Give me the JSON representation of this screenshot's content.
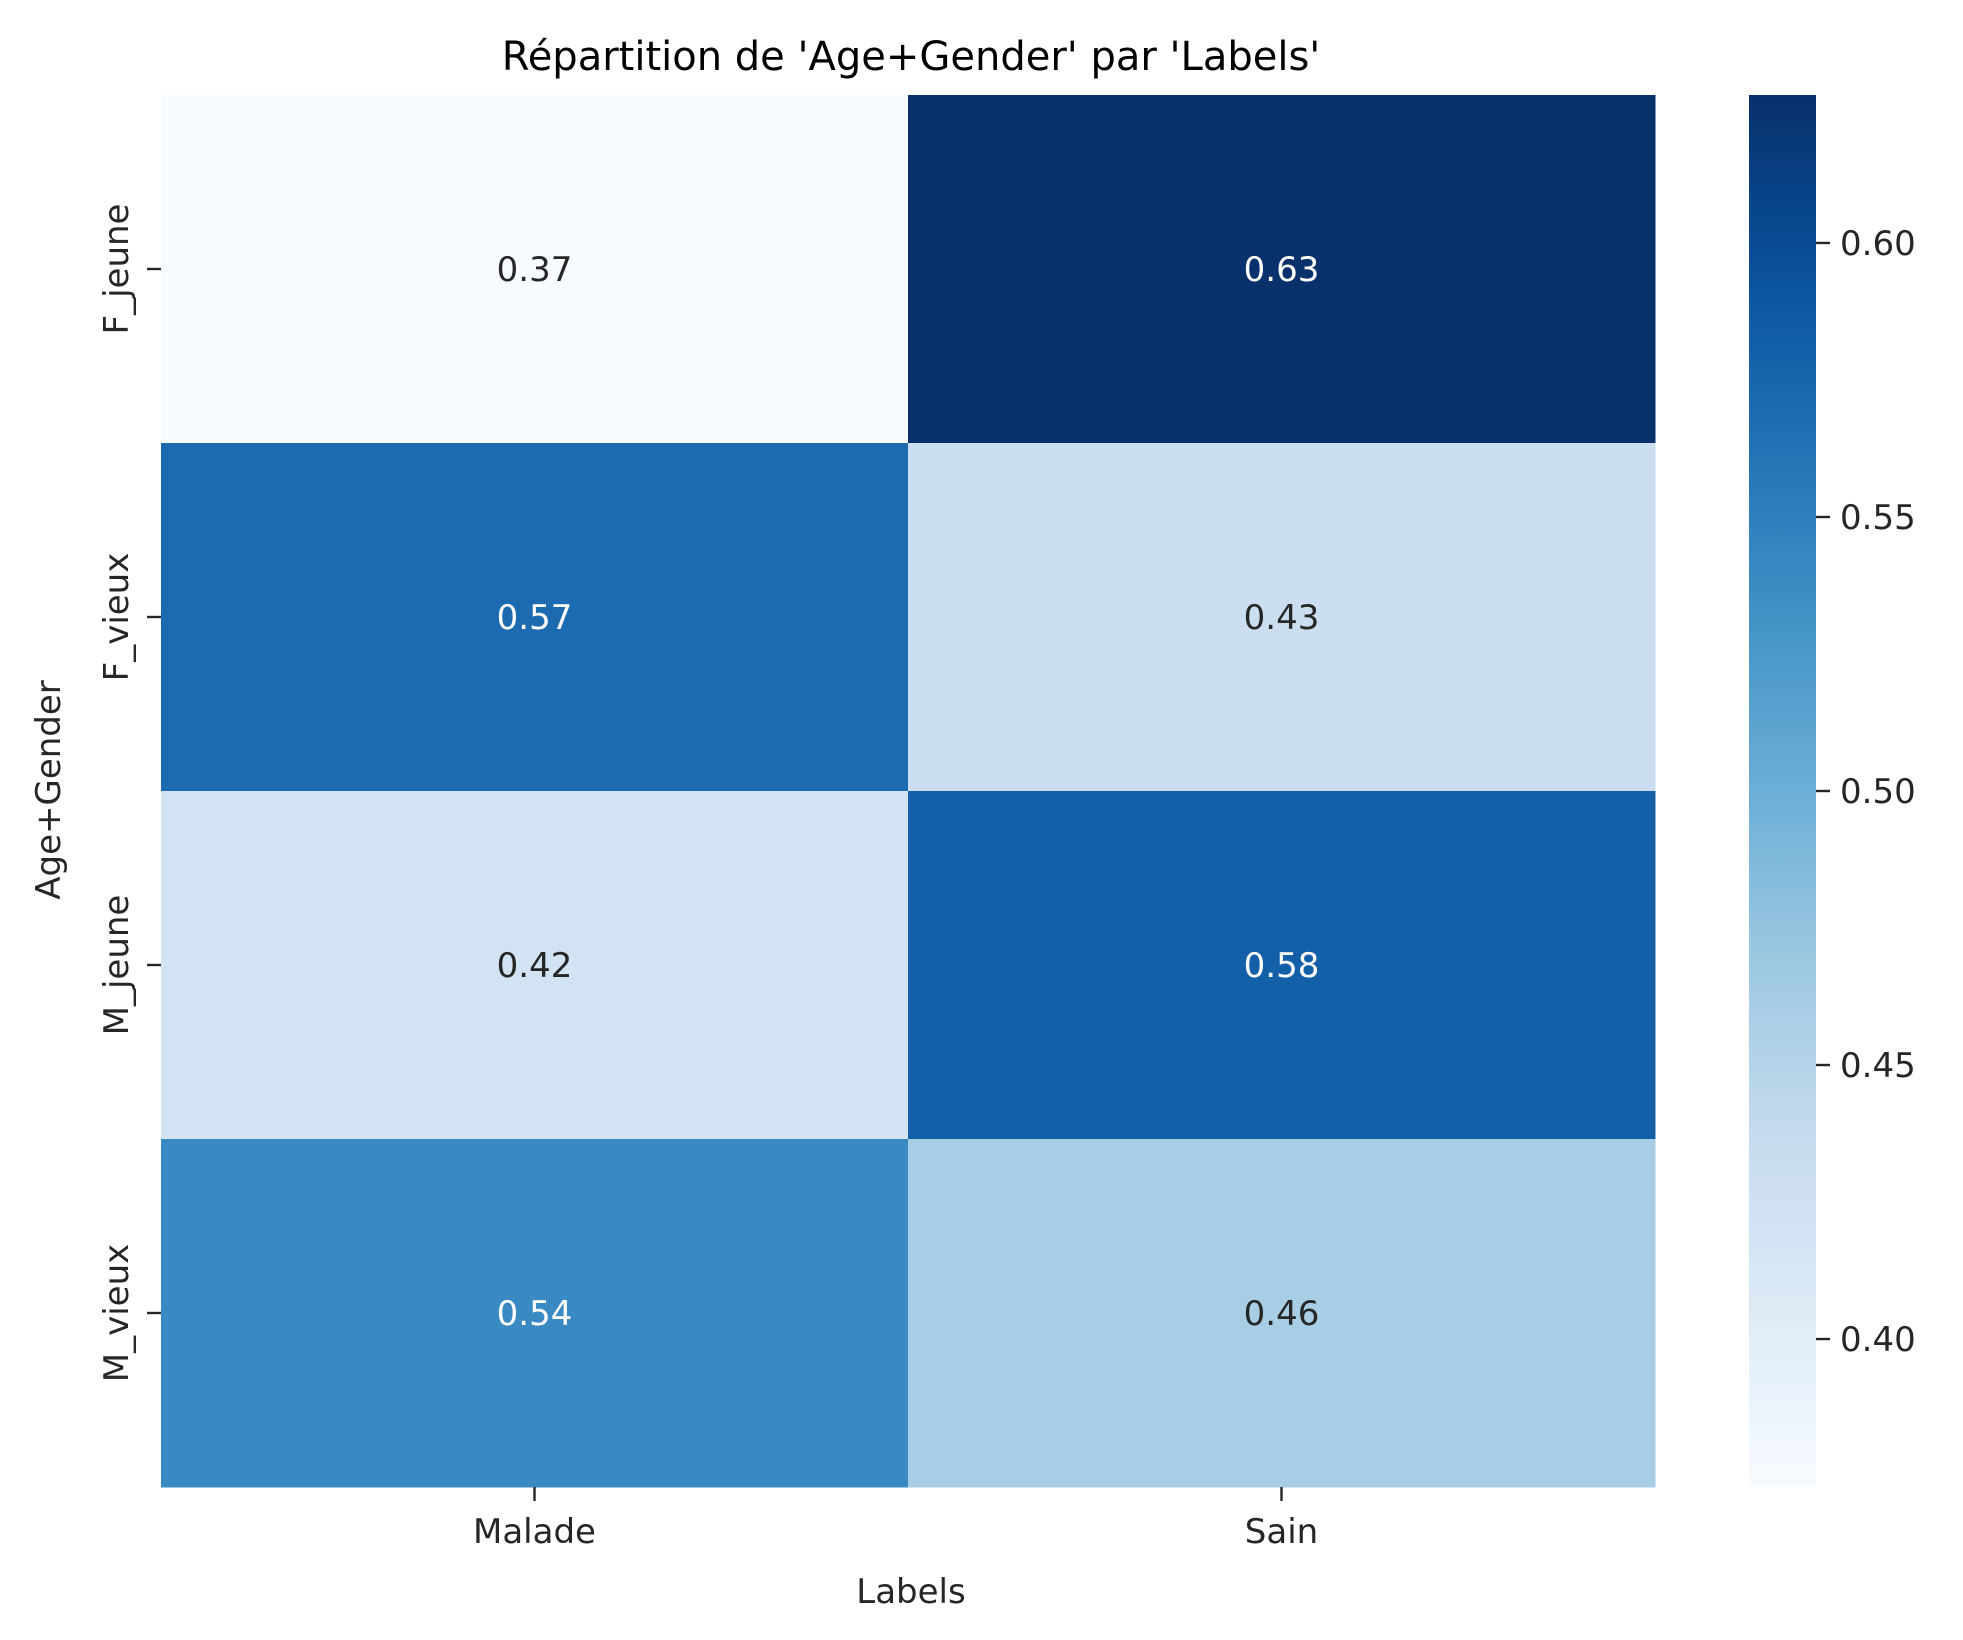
{
  "chart_data": {
    "type": "heatmap",
    "title": "Répartition de 'Age+Gender' par 'Labels'",
    "xlabel": "Labels",
    "ylabel": "Age+Gender",
    "x_categories": [
      "Malade",
      "Sain"
    ],
    "y_categories": [
      "F_jeune",
      "F_vieux",
      "M_jeune",
      "M_vieux"
    ],
    "values": [
      [
        0.37,
        0.63
      ],
      [
        0.57,
        0.43
      ],
      [
        0.42,
        0.58
      ],
      [
        0.54,
        0.46
      ]
    ],
    "cell_labels": [
      [
        "0.37",
        "0.63"
      ],
      [
        "0.57",
        "0.43"
      ],
      [
        "0.42",
        "0.58"
      ],
      [
        "0.54",
        "0.46"
      ]
    ],
    "colormap": "Blues",
    "colorbar": {
      "range": [
        0.373,
        0.627
      ],
      "ticks": [
        0.4,
        0.45,
        0.5,
        0.55,
        0.6
      ],
      "tick_labels": [
        "0.40",
        "0.45",
        "0.50",
        "0.55",
        "0.60"
      ],
      "placement": "right"
    },
    "grid": false,
    "annotation_colors": {
      "dark_text": "#262626",
      "light_text": "#ffffff"
    }
  }
}
